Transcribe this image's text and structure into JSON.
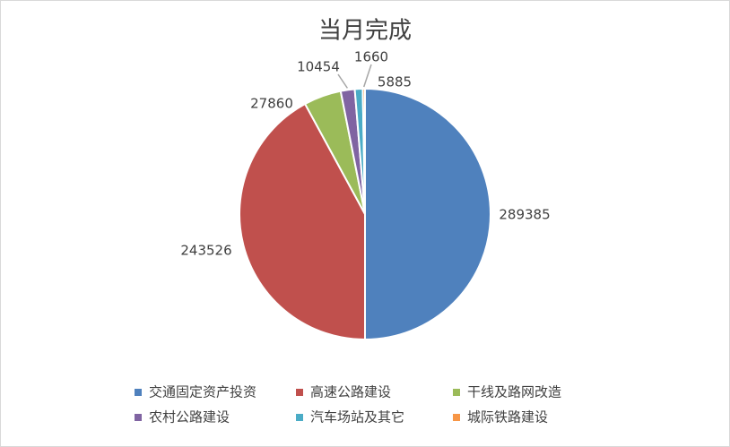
{
  "chart_data": {
    "type": "pie",
    "title": "当月完成",
    "categories": [
      "交通固定资产投资",
      "高速公路建设",
      "干线及路网改造",
      "农村公路建设",
      "汽车场站及其它",
      "城际铁路建设"
    ],
    "values": [
      289385,
      243526,
      27860,
      10454,
      5885,
      1660
    ],
    "colors": [
      "#4f81bd",
      "#c0504d",
      "#9bbb59",
      "#8064a2",
      "#4bacc6",
      "#f79646"
    ],
    "legend": "bottom"
  }
}
